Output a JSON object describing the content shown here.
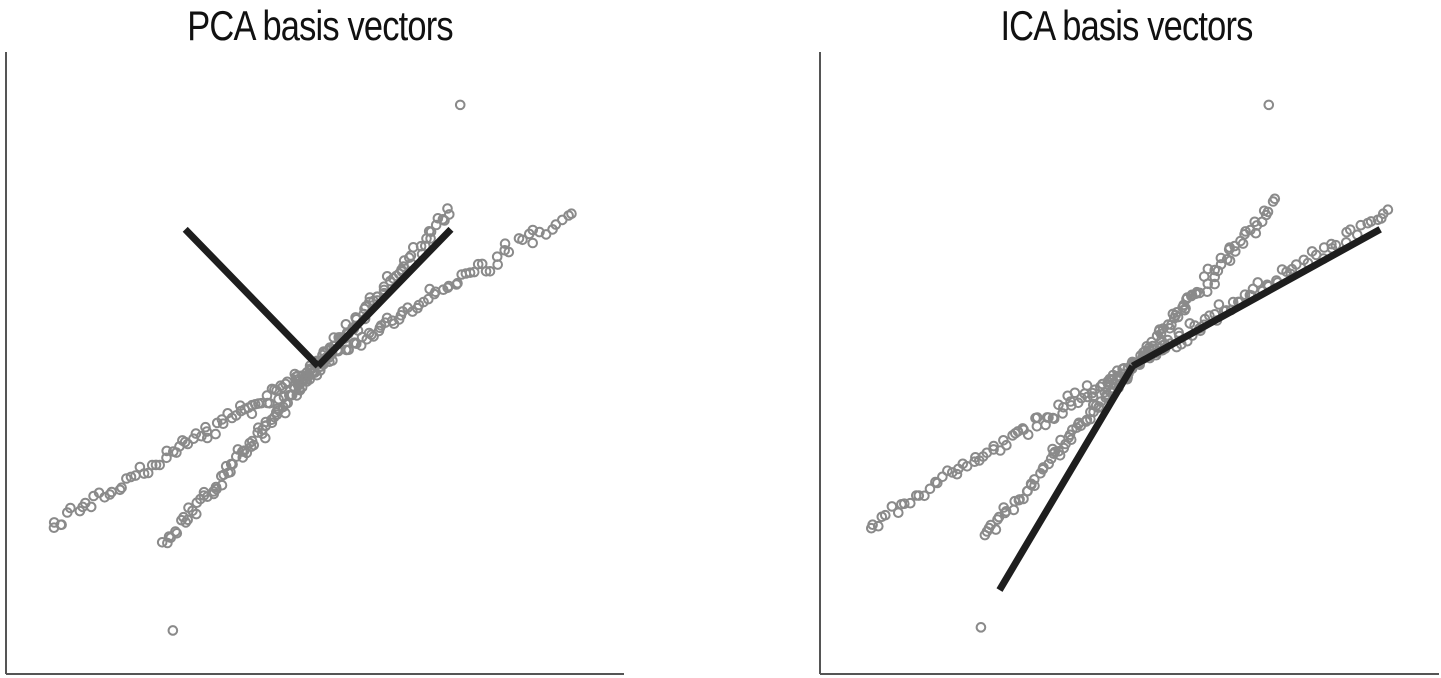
{
  "colors": {
    "points": "#8a8a8a",
    "basis": "#1e1e1e",
    "axes": "#555555"
  },
  "chart_data": [
    {
      "type": "scatter",
      "title": "PCA basis vectors",
      "xlabel": "",
      "ylabel": "",
      "xlim": [
        0,
        1
      ],
      "ylim": [
        0,
        1
      ],
      "grid": false,
      "legend": "none",
      "series": [
        {
          "direction": [
            1.0,
            1.15
          ],
          "x_range": [
            0.255,
            0.72
          ],
          "y_origin": 0.495
        },
        {
          "direction": [
            1.0,
            0.6
          ],
          "x_range": [
            0.075,
            0.905
          ],
          "y_origin": 0.495
        }
      ],
      "basis_vectors": [
        {
          "from": [
            0.505,
            0.495
          ],
          "to": [
            0.29,
            0.715
          ]
        },
        {
          "from": [
            0.505,
            0.495
          ],
          "to": [
            0.72,
            0.715
          ]
        }
      ],
      "outliers": [
        [
          0.09,
          0.24
        ],
        [
          0.27,
          0.07
        ],
        [
          0.735,
          0.915
        ],
        [
          0.915,
          0.74
        ]
      ]
    },
    {
      "type": "scatter",
      "title": "ICA basis vectors",
      "xlabel": "",
      "ylabel": "",
      "xlim": [
        0,
        1
      ],
      "ylim": [
        0,
        1
      ],
      "grid": false,
      "legend": "none",
      "series": [
        {
          "direction": [
            1.0,
            1.15
          ],
          "x_range": [
            0.265,
            0.735
          ],
          "y_origin": 0.495
        },
        {
          "direction": [
            1.0,
            0.6
          ],
          "x_range": [
            0.085,
            0.915
          ],
          "y_origin": 0.495
        }
      ],
      "basis_vectors": [
        {
          "from": [
            0.505,
            0.495
          ],
          "to": [
            0.29,
            0.135
          ]
        },
        {
          "from": [
            0.505,
            0.495
          ],
          "to": [
            0.905,
            0.715
          ]
        }
      ],
      "outliers": [
        [
          0.085,
          0.24
        ],
        [
          0.26,
          0.075
        ],
        [
          0.725,
          0.915
        ],
        [
          0.91,
          0.74
        ]
      ]
    }
  ]
}
